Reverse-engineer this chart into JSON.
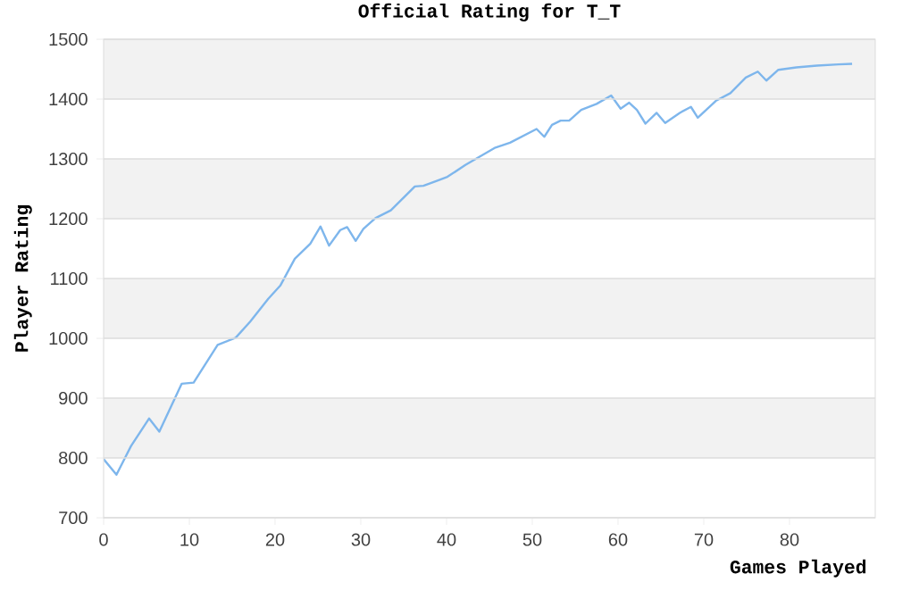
{
  "chart_data": {
    "type": "line",
    "title": "Official Rating for T_T",
    "xlabel": "Games Played",
    "ylabel": "Player Rating",
    "x": [
      0,
      1.5,
      3.2,
      5.3,
      6.5,
      9.1,
      10.5,
      13.3,
      15.4,
      17.1,
      19.2,
      20.6,
      22.3,
      24.1,
      25.3,
      26.3,
      27.6,
      28.4,
      29.4,
      30.3,
      31.7,
      33.5,
      36.3,
      37.3,
      39,
      40.1,
      42.2,
      45.7,
      47.4,
      50.5,
      51.4,
      52.3,
      53.3,
      54.3,
      55.7,
      57.5,
      59.2,
      60.3,
      61.3,
      62.2,
      63.2,
      64.5,
      65.5,
      67.2,
      68.5,
      69.3,
      71.4,
      73.1,
      74.9,
      76.3,
      77.3,
      78.7,
      80.8,
      83.2,
      85.7,
      87.3
    ],
    "series": [
      {
        "color": "#7eb6ec",
        "values": [
          798,
          772,
          820,
          866,
          844,
          924,
          926,
          989,
          1001,
          1028,
          1066,
          1088,
          1133,
          1158,
          1187,
          1155,
          1181,
          1186,
          1163,
          1183,
          1201,
          1214,
          1254,
          1255,
          1264,
          1270,
          1290,
          1319,
          1327,
          1350,
          1337,
          1357,
          1364,
          1364,
          1382,
          1392,
          1406,
          1384,
          1394,
          1382,
          1359,
          1377,
          1360,
          1377,
          1387,
          1369,
          1397,
          1410,
          1436,
          1446,
          1431,
          1449,
          1453,
          1456,
          1458,
          1459
        ]
      }
    ],
    "xlim": [
      0,
      90
    ],
    "ylim": [
      700,
      1500
    ],
    "xticks": [
      0,
      10,
      20,
      30,
      40,
      50,
      60,
      70,
      80
    ],
    "yticks": [
      700,
      800,
      900,
      1000,
      1100,
      1200,
      1300,
      1400,
      1500
    ],
    "grid": "y",
    "marker": "none",
    "line_style": "solid"
  }
}
